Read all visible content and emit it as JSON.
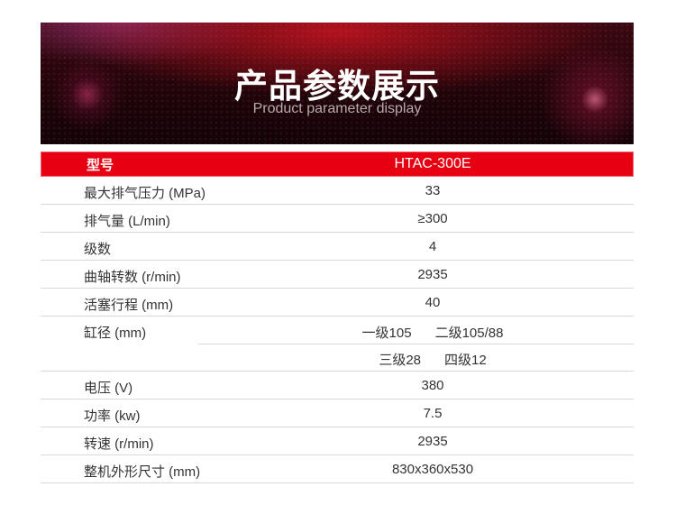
{
  "banner": {
    "title": "产品参数展示",
    "subtitle": "Product parameter display"
  },
  "header": {
    "label": "型号",
    "value": "HTAC-300E"
  },
  "rows": [
    {
      "label": "最大排气压力 (MPa)",
      "value": "33"
    },
    {
      "label": "排气量 (L/min)",
      "value": "≥300"
    },
    {
      "label": "级数",
      "value": "4"
    },
    {
      "label": "曲轴转数 (r/min)",
      "value": "2935"
    },
    {
      "label": "活塞行程 (mm)",
      "value": "40"
    }
  ],
  "bore": {
    "label": "缸径 (mm)",
    "stage1": "一级105",
    "stage2": "二级105/88",
    "stage3": "三级28",
    "stage4": "四级12"
  },
  "rows2": [
    {
      "label": "电压 (V)",
      "value": "380"
    },
    {
      "label": "功率 (kw)",
      "value": "7.5"
    },
    {
      "label": "转速 (r/min)",
      "value": "2935"
    },
    {
      "label": "整机外形尺寸 (mm)",
      "value": "830x360x530"
    }
  ],
  "colors": {
    "accent": "#e60012"
  }
}
